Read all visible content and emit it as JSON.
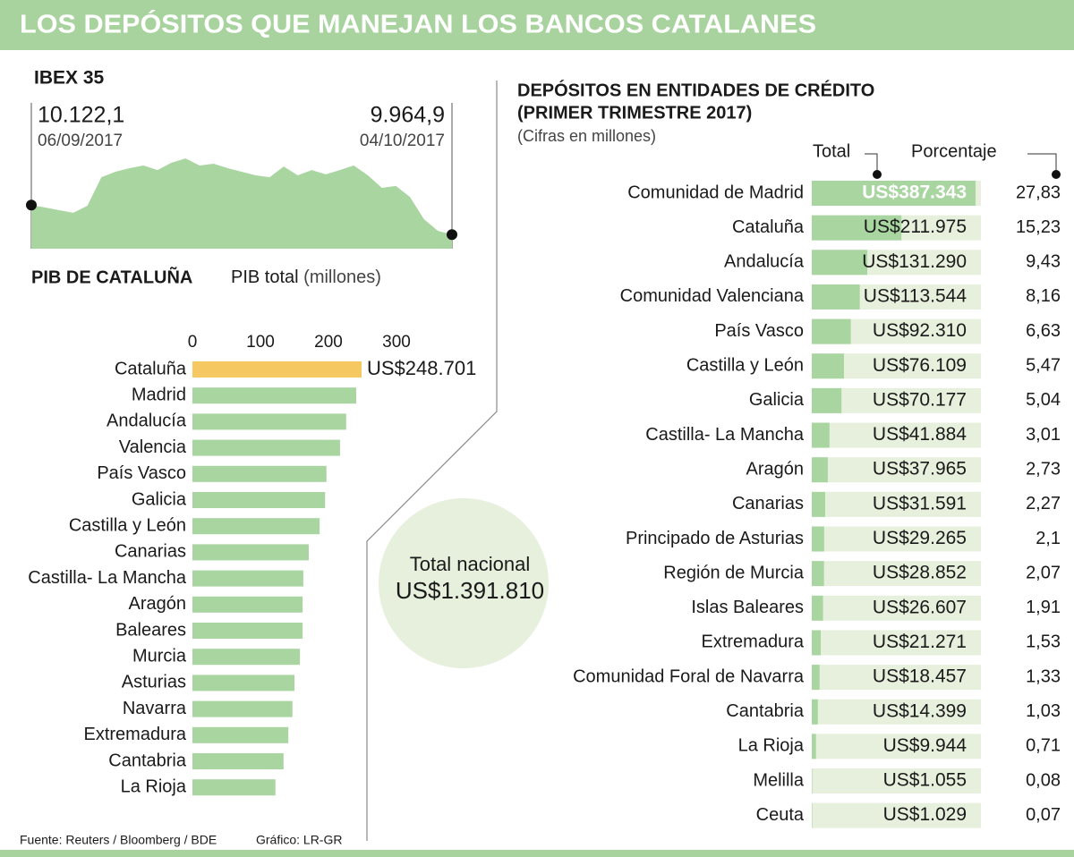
{
  "title": "LOS DEPÓSITOS QUE MANEJAN LOS BANCOS CATALANES",
  "source": "Fuente: Reuters / Bloomberg / BDE",
  "credit": "Gráfico: LR-GR",
  "summary": {
    "label": "Total nacional",
    "value": "US$1.391.810"
  },
  "chart_data": [
    {
      "type": "area",
      "title": "IBEX 35",
      "color": "#a8d5a0",
      "categories": [
        "06/09/2017",
        null,
        null,
        null,
        null,
        null,
        null,
        null,
        null,
        null,
        null,
        null,
        null,
        null,
        null,
        null,
        null,
        null,
        null,
        null,
        null,
        null,
        null,
        null,
        null,
        null,
        null,
        null,
        null,
        null,
        "04/10/2017"
      ],
      "values": [
        10122.1,
        10109,
        10095,
        10081,
        10119,
        10271,
        10300,
        10319,
        10333,
        10309,
        10348,
        10371,
        10333,
        10343,
        10319,
        10300,
        10281,
        10271,
        10328,
        10281,
        10309,
        10286,
        10309,
        10333,
        10281,
        10214,
        10224,
        10166,
        10047,
        9985,
        9964.9
      ],
      "value_labels": [
        "10.122,1",
        null,
        null,
        null,
        null,
        null,
        null,
        null,
        null,
        null,
        null,
        null,
        null,
        null,
        null,
        null,
        null,
        null,
        null,
        null,
        null,
        null,
        null,
        null,
        null,
        null,
        null,
        null,
        null,
        null,
        "9.964,9"
      ],
      "ylim": [
        9890,
        10400
      ]
    },
    {
      "type": "bar",
      "title": "PIB DE CATALUÑA",
      "axis_label": "PIB total",
      "unit": "(millones)",
      "categories": [
        "Cataluña",
        "Madrid",
        "Andalucía",
        "Valencia",
        "País Vasco",
        "Galicia",
        "Castilla y León",
        "Canarias",
        "Castilla- La Mancha",
        "Aragón",
        "Baleares",
        "Murcia",
        "Asturias",
        "Navarra",
        "Extremadura",
        "Cantabria",
        "La Rioja"
      ],
      "values": [
        248.701,
        240.8,
        226,
        217,
        197,
        195,
        187,
        171,
        163,
        162,
        162,
        158,
        150,
        147,
        141,
        134,
        122
      ],
      "value_labels": [
        "US$248.701",
        null,
        null,
        null,
        null,
        null,
        null,
        null,
        null,
        null,
        null,
        null,
        null,
        null,
        null,
        null,
        null
      ],
      "colors": [
        "#f5c862",
        "#a8d5a0",
        "#a8d5a0",
        "#a8d5a0",
        "#a8d5a0",
        "#a8d5a0",
        "#a8d5a0",
        "#a8d5a0",
        "#a8d5a0",
        "#a8d5a0",
        "#a8d5a0",
        "#a8d5a0",
        "#a8d5a0",
        "#a8d5a0",
        "#a8d5a0",
        "#a8d5a0",
        "#a8d5a0"
      ],
      "xlim": [
        0,
        300
      ],
      "xticks": [
        0,
        100,
        200,
        300
      ]
    },
    {
      "type": "bar",
      "title": [
        "DEPÓSITOS EN ENTIDADES DE CRÉDITO",
        "(PRIMER TRIMESTRE 2017)"
      ],
      "subtitle": "(Cifras en millones)",
      "column_headers": [
        "Total",
        "Porcentaje"
      ],
      "color": "#a8d5a0",
      "track_color": "#e6f0dc",
      "categories": [
        "Comunidad de Madrid",
        "Cataluña",
        "Andalucía",
        "Comunidad Valenciana",
        "País Vasco",
        "Castilla y León",
        "Galicia",
        "Castilla- La Mancha",
        "Aragón",
        "Canarias",
        "Principado de Asturias",
        "Región de Murcia",
        "Islas Baleares",
        "Extremadura",
        "Comunidad Foral de Navarra",
        "Cantabria",
        "La Rioja",
        "Melilla",
        "Ceuta"
      ],
      "values": [
        387343,
        211975,
        131290,
        113544,
        92310,
        76109,
        70177,
        41884,
        37965,
        31591,
        29265,
        28852,
        26607,
        21271,
        18457,
        14399,
        9944,
        1055,
        1029
      ],
      "value_labels": [
        "US$387.343",
        "US$211.975",
        "US$131.290",
        "US$113.544",
        "US$92.310",
        "US$76.109",
        "US$70.177",
        "US$41.884",
        "US$37.965",
        "US$31.591",
        "US$29.265",
        "US$28.852",
        "US$26.607",
        "US$21.271",
        "US$18.457",
        "US$14.399",
        "US$9.944",
        "US$1.055",
        "US$1.029"
      ],
      "percentages": [
        27.83,
        15.23,
        9.43,
        8.16,
        6.63,
        5.47,
        5.04,
        3.01,
        2.73,
        2.27,
        2.1,
        2.07,
        1.91,
        1.53,
        1.33,
        1.03,
        0.71,
        0.08,
        0.07
      ],
      "percentage_labels": [
        "27,83",
        "15,23",
        "9,43",
        "8,16",
        "6,63",
        "5,47",
        "5,04",
        "3,01",
        "2,73",
        "2,27",
        "2,1",
        "2,07",
        "1,91",
        "1,53",
        "1,33",
        "1,03",
        "0,71",
        "0,08",
        "0,07"
      ],
      "xlim": [
        0,
        400000
      ]
    }
  ]
}
